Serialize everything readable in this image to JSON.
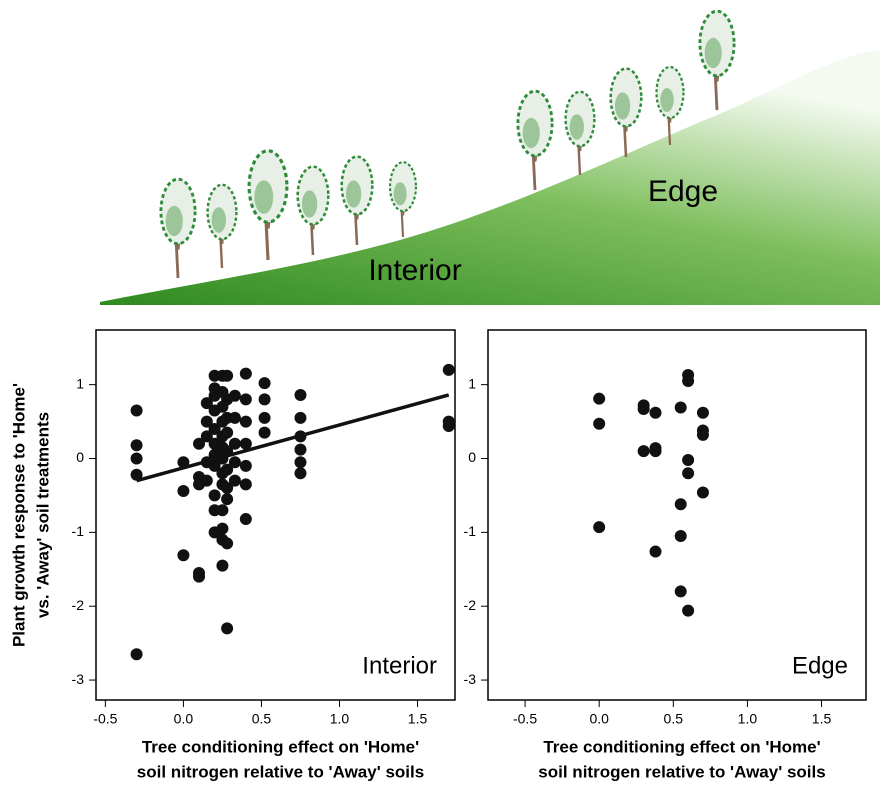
{
  "illustration": {
    "labels": [
      "Interior",
      "Edge"
    ]
  },
  "chart_data": [
    {
      "type": "scatter",
      "label": "Interior",
      "ylabel": [
        "Plant growth response to 'Home'",
        "vs. 'Away' soil treatments"
      ],
      "xlabel": [
        "Tree conditioning effect on 'Home'",
        "soil nitrogen relative to 'Away' soils"
      ],
      "color": "#111111",
      "x": [
        -0.3,
        -0.3,
        -0.3,
        -0.3,
        -0.3,
        0,
        0,
        0,
        0.1,
        0.1,
        0.1,
        0.1,
        0.1,
        0.15,
        0.15,
        0.15,
        0.15,
        0.15,
        0.2,
        0.2,
        0.2,
        0.2,
        0.2,
        0.2,
        0.2,
        0.2,
        0.2,
        0.2,
        0.2,
        0.25,
        0.25,
        0.25,
        0.25,
        0.25,
        0.25,
        0.25,
        0.25,
        0.25,
        0.25,
        0.25,
        0.25,
        0.25,
        0.28,
        0.28,
        0.28,
        0.28,
        0.28,
        0.28,
        0.28,
        0.28,
        0.28,
        0.28,
        0.33,
        0.33,
        0.33,
        0.33,
        0.33,
        0.4,
        0.4,
        0.4,
        0.4,
        0.4,
        0.4,
        0.4,
        0.52,
        0.52,
        0.52,
        0.52,
        0.75,
        0.75,
        0.75,
        0.75,
        0.75,
        0.75,
        1.7,
        1.7,
        1.7
      ],
      "y": [
        0.65,
        0.18,
        0,
        -0.22,
        -2.65,
        -0.05,
        -0.44,
        -1.31,
        0.2,
        -0.25,
        -0.35,
        -1.55,
        -1.6,
        0.75,
        0.5,
        0.3,
        -0.05,
        -0.3,
        1.12,
        0.95,
        0.85,
        0.65,
        0.4,
        0.2,
        0.05,
        -0.1,
        -0.5,
        -0.7,
        -1.0,
        1.12,
        0.9,
        0.7,
        0.5,
        0.3,
        0.15,
        0,
        -0.2,
        -0.35,
        -0.7,
        -0.95,
        -1.1,
        -1.45,
        1.12,
        0.8,
        0.55,
        0.35,
        0.1,
        -0.15,
        -0.4,
        -0.55,
        -1.15,
        -2.3,
        0.85,
        0.55,
        0.2,
        -0.05,
        -0.3,
        1.15,
        0.8,
        0.5,
        0.2,
        -0.1,
        -0.35,
        -0.82,
        1.02,
        0.8,
        0.55,
        0.35,
        0.86,
        0.55,
        0.3,
        0.12,
        -0.05,
        -0.2,
        1.2,
        0.5,
        0.44
      ],
      "fit": {
        "x": [
          -0.3,
          1.7
        ],
        "y": [
          -0.3,
          0.86
        ]
      },
      "xlim": [
        -0.56,
        1.74
      ],
      "ylim": [
        -3.27,
        1.74
      ],
      "xticks": [
        -0.5,
        {
          "value": 0,
          "label": "0.0"
        },
        0.5,
        {
          "value": 1,
          "label": "1.0"
        },
        1.5
      ],
      "yticks": [
        1,
        0,
        -1,
        -2,
        -3
      ]
    },
    {
      "type": "scatter",
      "label": "Edge",
      "xlabel": [
        "Tree conditioning effect on 'Home'",
        "soil nitrogen relative to 'Away' soils"
      ],
      "color": "#111111",
      "x": [
        0,
        0,
        0,
        0.3,
        0.3,
        0.3,
        0.38,
        0.38,
        0.38,
        0.38,
        0.55,
        0.55,
        0.55,
        0.55,
        0.6,
        0.6,
        0.6,
        0.6,
        0.6,
        0.7,
        0.7,
        0.7,
        0.7
      ],
      "y": [
        0.81,
        0.47,
        -0.93,
        0.72,
        0.67,
        0.1,
        0.62,
        0.14,
        0.1,
        -1.26,
        0.69,
        -0.62,
        -1.05,
        -1.8,
        1.13,
        1.05,
        -0.02,
        -0.2,
        -2.06,
        0.62,
        0.38,
        0.32,
        -0.46
      ],
      "xlim": [
        -0.75,
        1.8
      ],
      "ylim": [
        -3.27,
        1.74
      ],
      "xticks": [
        -0.5,
        {
          "value": 0,
          "label": "0.0"
        },
        0.5,
        {
          "value": 1,
          "label": "1.0"
        },
        1.5
      ],
      "yticks": [
        1,
        0,
        -1,
        -2,
        -3
      ]
    }
  ]
}
